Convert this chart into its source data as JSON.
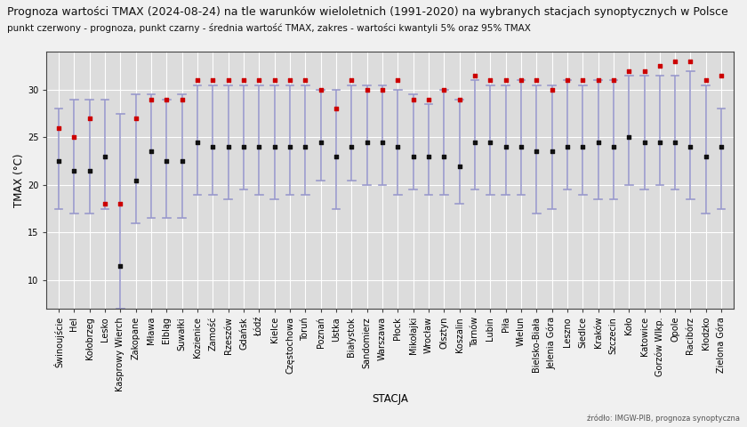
{
  "title": "Prognoza wartości TMAX (2024-08-24) na tle warunków wieloletnich (1991-2020) na wybranych stacjach synoptycznych w Polsce",
  "subtitle": "punkt czerwony - prognoza, punkt czarny - średnia wartość TMAX, zakres - wartości kwantyli 5% oraz 95% TMAX",
  "xlabel": "STACJA",
  "ylabel": "TMAX (°C)",
  "source": "źródło: IMGW-PIB, prognoza synoptyczna",
  "stations": [
    "Świnoujście",
    "Hel",
    "Kołobrzeg",
    "Lesko",
    "Kasprowy Wierch",
    "Zakopane",
    "Mława",
    "Elbląg",
    "Suwałki",
    "Kozienice",
    "Zamość",
    "Rzeszów",
    "Gdańsk",
    "Łódź",
    "Kielce",
    "Częstochowa",
    "Toruń",
    "Poznań",
    "Ustka",
    "Białystok",
    "Sandomierz",
    "Warszawa",
    "Płock",
    "Mikołajki",
    "Wrocław",
    "Olsztyn",
    "Koszalin",
    "Tarnów",
    "Lubin",
    "Piła",
    "Wielun",
    "Bielsko-Biała",
    "Jelenia Góra",
    "Leszno",
    "Siedlce",
    "Kraków",
    "Szczecin",
    "Koło",
    "Katowice",
    "Gorzów Wlkp.",
    "Opole",
    "Racibórz",
    "Kłodzko",
    "Zielona Góra"
  ],
  "forecast": [
    26.0,
    25.0,
    27.0,
    18.0,
    18.0,
    27.0,
    29.0,
    29.0,
    29.0,
    31.0,
    31.0,
    31.0,
    31.0,
    31.0,
    31.0,
    31.0,
    31.0,
    30.0,
    28.0,
    31.0,
    30.0,
    30.0,
    31.0,
    29.0,
    29.0,
    30.0,
    29.0,
    31.5,
    31.0,
    31.0,
    31.0,
    31.0,
    30.0,
    31.0,
    31.0,
    31.0,
    31.0,
    32.0,
    32.0,
    32.5,
    33.0,
    33.0,
    31.0,
    31.5
  ],
  "mean": [
    22.5,
    21.5,
    21.5,
    23.0,
    11.5,
    20.5,
    23.5,
    22.5,
    22.5,
    24.5,
    24.0,
    24.0,
    24.0,
    24.0,
    24.0,
    24.0,
    24.0,
    24.5,
    23.0,
    24.0,
    24.5,
    24.5,
    24.0,
    23.0,
    23.0,
    23.0,
    22.0,
    24.5,
    24.5,
    24.0,
    24.0,
    23.5,
    23.5,
    24.0,
    24.0,
    24.5,
    24.0,
    25.0,
    24.5,
    24.5,
    24.5,
    24.0,
    23.0,
    24.0
  ],
  "q05": [
    17.5,
    17.0,
    17.0,
    17.5,
    7.0,
    16.0,
    16.5,
    16.5,
    16.5,
    19.0,
    19.0,
    18.5,
    19.5,
    19.0,
    18.5,
    19.0,
    19.0,
    20.5,
    17.5,
    20.5,
    20.0,
    20.0,
    19.0,
    19.5,
    19.0,
    19.0,
    18.0,
    19.5,
    19.0,
    19.0,
    19.0,
    17.0,
    17.5,
    19.5,
    19.0,
    18.5,
    18.5,
    20.0,
    19.5,
    20.0,
    19.5,
    18.5,
    17.0,
    17.5
  ],
  "q95": [
    28.0,
    29.0,
    29.0,
    29.0,
    27.5,
    29.5,
    29.5,
    29.0,
    29.5,
    30.5,
    30.5,
    30.5,
    30.5,
    30.5,
    30.5,
    30.5,
    30.5,
    30.0,
    30.0,
    30.5,
    30.5,
    30.5,
    30.0,
    29.5,
    28.5,
    30.0,
    29.0,
    31.0,
    30.5,
    30.5,
    31.0,
    30.5,
    30.5,
    31.0,
    30.5,
    31.0,
    31.0,
    31.5,
    31.5,
    31.5,
    31.5,
    32.0,
    30.5,
    28.0
  ],
  "bar_color": "#9999cc",
  "mean_color": "#111111",
  "forecast_color": "#cc0000",
  "outer_bg": "#f0f0f0",
  "plot_bg": "#dcdcdc",
  "ylim": [
    7,
    34
  ],
  "yticks": [
    10,
    15,
    20,
    25,
    30
  ],
  "title_fontsize": 9.0,
  "subtitle_fontsize": 7.5,
  "axis_label_fontsize": 8.5,
  "tick_fontsize": 7.0
}
